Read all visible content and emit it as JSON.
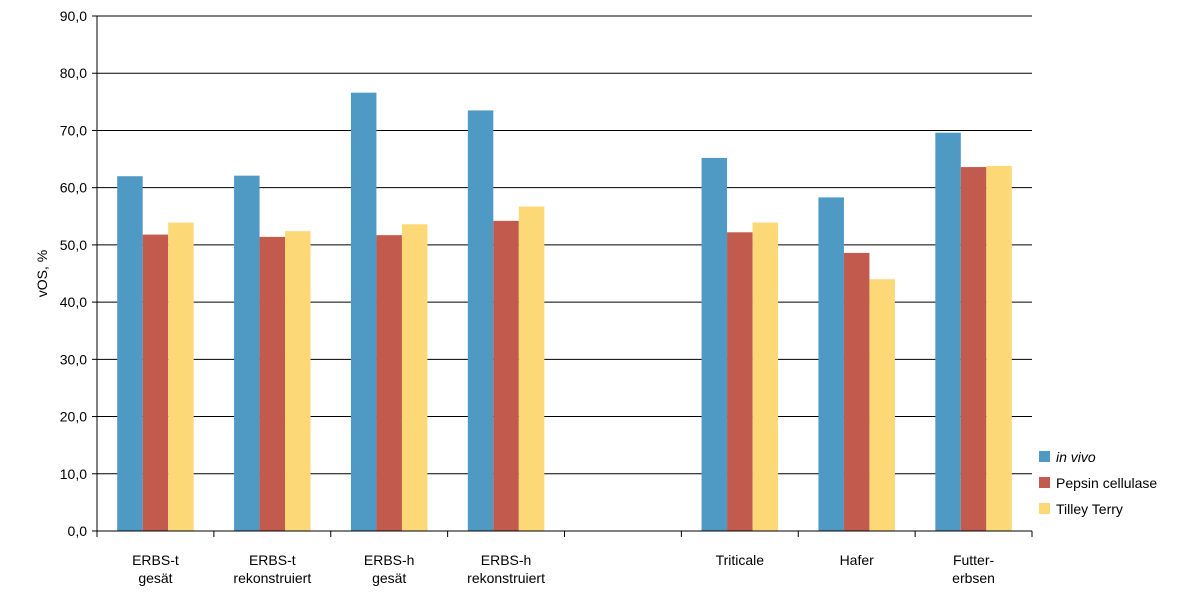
{
  "chart_data": {
    "type": "bar",
    "title": "",
    "xlabel": "",
    "ylabel": "vOS, %",
    "ylim": [
      0,
      90
    ],
    "ytick_step": 10,
    "ytick_labels": [
      "0,0",
      "10,0",
      "20,0",
      "30,0",
      "40,0",
      "50,0",
      "60,0",
      "70,0",
      "80,0",
      "90,0"
    ],
    "grid": true,
    "legend_position": "bottom-right",
    "categories": [
      [
        "ERBS-t",
        "gesät"
      ],
      [
        "ERBS-t",
        "rekonstruiert"
      ],
      [
        "ERBS-h",
        "gesät"
      ],
      [
        "ERBS-h",
        "rekonstruiert"
      ],
      [
        "",
        ""
      ],
      [
        "Triticale",
        ""
      ],
      [
        "Hafer",
        ""
      ],
      [
        "Futter-",
        "erbsen"
      ]
    ],
    "series": [
      {
        "name": "in vivo",
        "italic": true,
        "color": "#4f9ac4",
        "values": [
          62.0,
          62.1,
          76.6,
          73.5,
          null,
          65.2,
          58.3,
          69.6
        ]
      },
      {
        "name": "Pepsin cellulase",
        "italic": false,
        "color": "#c25a4e",
        "values": [
          51.8,
          51.4,
          51.7,
          54.2,
          null,
          52.2,
          48.6,
          63.6
        ]
      },
      {
        "name": "Tilley Terry",
        "italic": false,
        "color": "#fdd876",
        "values": [
          53.9,
          52.4,
          53.6,
          56.7,
          null,
          53.9,
          44.0,
          63.8
        ]
      }
    ]
  }
}
